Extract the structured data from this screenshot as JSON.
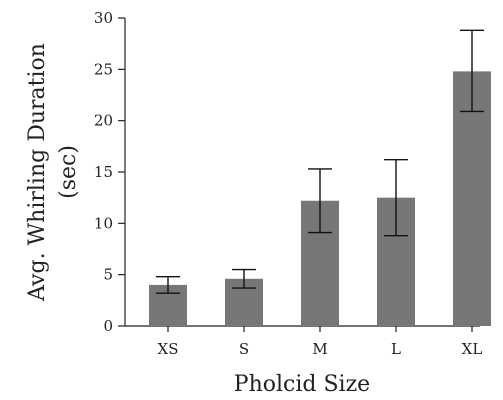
{
  "chart_data": {
    "type": "bar",
    "title": "",
    "xlabel": "Pholcid Size",
    "ylabel_line1": "Avg. Whirling Duration",
    "ylabel_line2": "(sec)",
    "categories": [
      "XS",
      "S",
      "M",
      "L",
      "XL"
    ],
    "series": [
      {
        "values": [
          4.0,
          4.6,
          12.2,
          12.5,
          24.8
        ],
        "error_low": [
          3.2,
          3.7,
          9.1,
          8.8,
          20.9
        ],
        "error_high": [
          4.8,
          5.5,
          15.3,
          16.2,
          28.8
        ]
      }
    ],
    "ylim": [
      0,
      30
    ],
    "yticks": [
      0,
      5,
      10,
      15,
      20,
      25,
      30
    ],
    "grid": false,
    "bar_color": "#777777",
    "errorbar_color": "#111111",
    "axis_color": "#222222"
  }
}
